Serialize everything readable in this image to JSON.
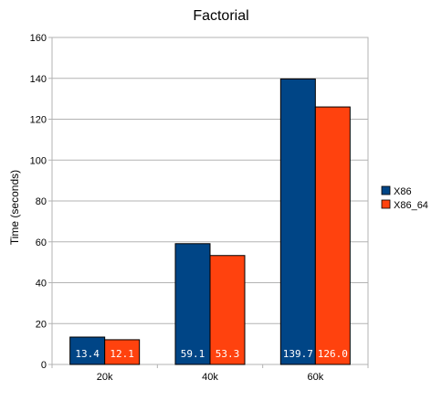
{
  "chart_data": {
    "type": "bar",
    "title": "Factorial",
    "xlabel": "",
    "ylabel": "Time (seconds)",
    "categories": [
      "20k",
      "40k",
      "60k"
    ],
    "series": [
      {
        "name": "X86",
        "color": "#004586",
        "values": [
          13.4,
          59.1,
          139.7
        ],
        "labels": [
          "13.4",
          "59.1",
          "139.7"
        ]
      },
      {
        "name": "X86_64",
        "color": "#ff420e",
        "values": [
          12.1,
          53.3,
          126.0
        ],
        "labels": [
          "12.1",
          "53.3",
          "126.0"
        ]
      }
    ],
    "ylim": [
      0,
      160
    ],
    "yticks": [
      0,
      20,
      40,
      60,
      80,
      100,
      120,
      140,
      160
    ],
    "grid": true,
    "legend": "right"
  }
}
